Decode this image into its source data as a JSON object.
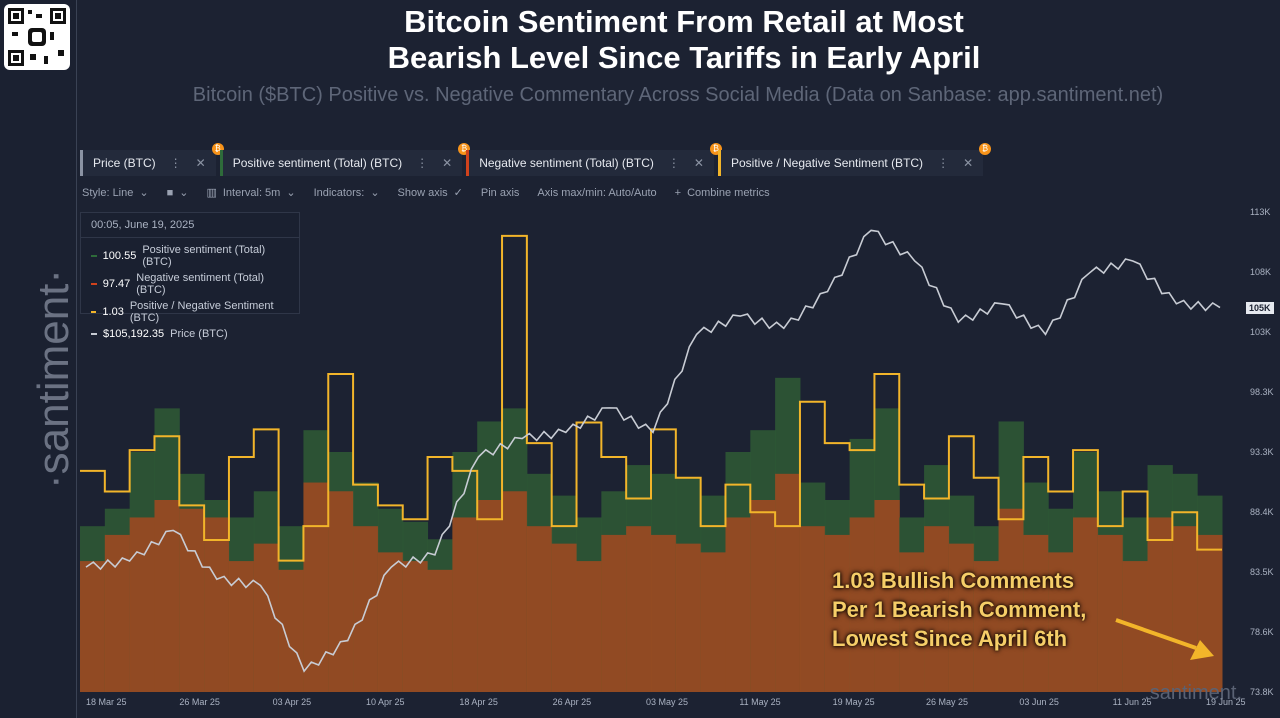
{
  "header": {
    "title_line1": "Bitcoin Sentiment From Retail at Most",
    "title_line2": "Bearish Level Since Tariffs in Early April",
    "subtitle": "Bitcoin ($BTC) Positive vs. Negative Commentary Across Social Media (Data on Sanbase: app.santiment.net)"
  },
  "branding": {
    "watermark": "·santiment·",
    "watermark_small": ".santiment."
  },
  "metrics": [
    {
      "label": "Price (BTC)",
      "color": "#8b93a3"
    },
    {
      "label": "Positive sentiment (Total) (BTC)",
      "color": "#2e6b3a"
    },
    {
      "label": "Negative sentiment (Total) (BTC)",
      "color": "#d0421c"
    },
    {
      "label": "Positive / Negative Sentiment (BTC)",
      "color": "#f2b52a"
    }
  ],
  "options": {
    "style": "Style: Line",
    "interval": "Interval: 5m",
    "indicators": "Indicators:",
    "show_axis": "Show axis",
    "pin_axis": "Pin axis",
    "axis_maxmin": "Axis max/min: Auto/Auto",
    "combine": "Combine metrics"
  },
  "tooltip": {
    "date": "00:05, June 19, 2025",
    "rows": [
      {
        "value": "100.55",
        "label": "Positive sentiment (Total) (BTC)",
        "color": "#2e6b3a"
      },
      {
        "value": "97.47",
        "label": "Negative sentiment (Total) (BTC)",
        "color": "#d0421c"
      },
      {
        "value": "1.03",
        "label": "Positive / Negative Sentiment (BTC)",
        "color": "#f2b52a"
      },
      {
        "value": "$105,192.35",
        "label": "Price (BTC)",
        "color": "#c8ccd4"
      }
    ]
  },
  "callout": {
    "line1": "1.03 Bullish Comments",
    "line2": "Per 1 Bearish Comment,",
    "line3": "Lowest Since April 6th"
  },
  "price_tag": "105K",
  "chart_data": {
    "type": "line",
    "x_ticks": [
      "18 Mar 25",
      "26 Mar 25",
      "03 Apr 25",
      "10 Apr 25",
      "18 Apr 25",
      "26 Apr 25",
      "03 May 25",
      "11 May 25",
      "19 May 25",
      "26 May 25",
      "03 Jun 25",
      "11 Jun 25",
      "19 Jun 25"
    ],
    "y_ticks": [
      "113K",
      "108K",
      "103K",
      "98.3K",
      "93.3K",
      "88.4K",
      "83.5K",
      "78.6K",
      "73.8K"
    ],
    "ylim": [
      73800,
      113000
    ],
    "series": [
      {
        "name": "Price (BTC)",
        "x": [
          "18 Mar 25",
          "22 Mar 25",
          "26 Mar 25",
          "30 Mar 25",
          "03 Apr 25",
          "07 Apr 25",
          "09 Apr 25",
          "12 Apr 25",
          "18 Apr 25",
          "22 Apr 25",
          "26 Apr 25",
          "30 Apr 25",
          "03 May 25",
          "07 May 25",
          "09 May 25",
          "11 May 25",
          "15 May 25",
          "19 May 25",
          "22 May 25",
          "26 May 25",
          "30 May 25",
          "03 Jun 25",
          "06 Jun 25",
          "09 Jun 25",
          "11 Jun 25",
          "15 Jun 25",
          "19 Jun 25"
        ],
        "y": [
          84000,
          84500,
          87000,
          83000,
          82500,
          75500,
          78000,
          84000,
          85000,
          93000,
          94500,
          95000,
          97000,
          95000,
          103000,
          104500,
          103500,
          106500,
          111500,
          109000,
          104000,
          105500,
          103000,
          108000,
          109000,
          105500,
          105192
        ]
      },
      {
        "name": "Positive sentiment (Total) (BTC)",
        "values": [
          38,
          42,
          55,
          65,
          50,
          44,
          40,
          46,
          38,
          60,
          55,
          48,
          42,
          39,
          35,
          55,
          62,
          65,
          50,
          45,
          40,
          46,
          52,
          50,
          49,
          45,
          55,
          60,
          72,
          48,
          44,
          58,
          65,
          40,
          52,
          45,
          38,
          62,
          48,
          42,
          55,
          46,
          40,
          52,
          50,
          45
        ]
      },
      {
        "name": "Negative sentiment (Total) (BTC)",
        "values": [
          30,
          36,
          40,
          44,
          42,
          40,
          30,
          34,
          28,
          48,
          46,
          38,
          32,
          30,
          28,
          40,
          44,
          46,
          38,
          34,
          30,
          36,
          38,
          36,
          34,
          32,
          40,
          44,
          50,
          38,
          36,
          40,
          44,
          32,
          38,
          34,
          30,
          42,
          36,
          32,
          40,
          36,
          30,
          40,
          38,
          36
        ]
      },
      {
        "name": "Positive / Negative Sentiment (BTC)",
        "values": [
          1.6,
          1.45,
          1.75,
          1.85,
          1.35,
          1.1,
          1.7,
          1.9,
          0.95,
          1.2,
          2.3,
          1.5,
          1.35,
          1.25,
          1.7,
          1.6,
          1.25,
          3.3,
          1.8,
          1.2,
          1.95,
          1.7,
          1.4,
          1.9,
          1.55,
          1.2,
          1.5,
          1.3,
          1.2,
          2.1,
          1.8,
          1.75,
          2.3,
          1.5,
          1.4,
          1.85,
          1.55,
          1.25,
          1.7,
          1.45,
          1.75,
          1.2,
          1.45,
          1.1,
          1.3,
          1.03
        ]
      }
    ]
  }
}
